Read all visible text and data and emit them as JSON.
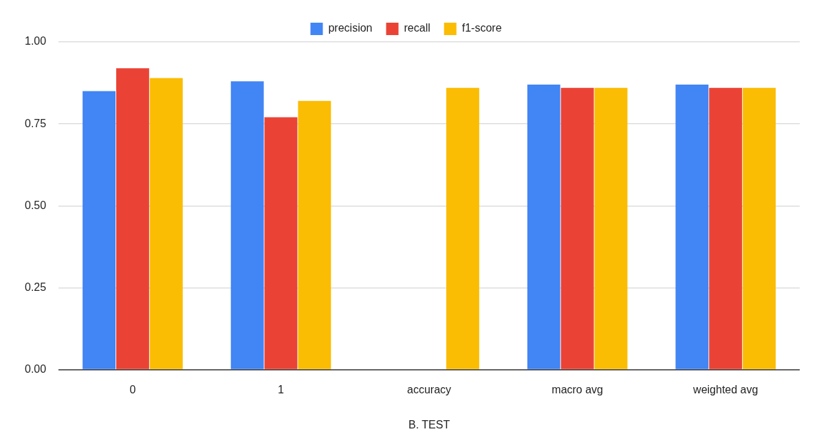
{
  "chart_data": {
    "type": "bar",
    "xlabel": "B. TEST",
    "categories": [
      "0",
      "1",
      "accuracy",
      "macro avg",
      "weighted avg"
    ],
    "series": [
      {
        "name": "precision",
        "color": "#4285f4",
        "values": [
          0.85,
          0.88,
          null,
          0.87,
          0.87
        ]
      },
      {
        "name": "recall",
        "color": "#ea4335",
        "values": [
          0.92,
          0.77,
          null,
          0.86,
          0.86
        ]
      },
      {
        "name": "f1-score",
        "color": "#fbbc04",
        "values": [
          0.89,
          0.82,
          0.86,
          0.86,
          0.86
        ]
      }
    ],
    "ylim": [
      0,
      1
    ],
    "yticks": [
      {
        "value": 0,
        "label": "0.00"
      },
      {
        "value": 0.25,
        "label": "0.25"
      },
      {
        "value": 0.5,
        "label": "0.50"
      },
      {
        "value": 0.75,
        "label": "0.75"
      },
      {
        "value": 1,
        "label": "1.00"
      }
    ],
    "grid": "y",
    "legend": "top"
  }
}
